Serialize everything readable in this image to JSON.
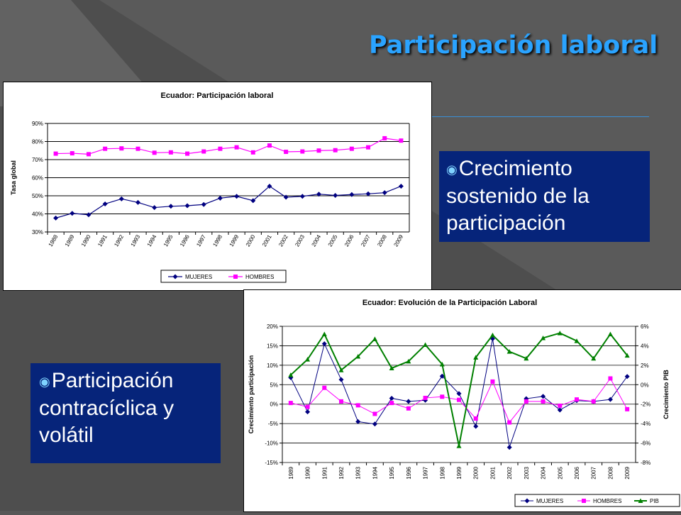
{
  "slide": {
    "title": "Participación laboral",
    "bullet1": "Crecimiento sostenido de la participación",
    "bullet2": "Participación contracíclica y volátil"
  },
  "colors": {
    "mujeres": "#000080",
    "hombres": "#ff00ff",
    "pib": "#008000",
    "title": "#2aa3ff",
    "callout": "#06247a"
  },
  "chart_data": [
    {
      "type": "line",
      "title": "Ecuador: Participación laboral",
      "ylabel": "Tasa global",
      "xlabel": "",
      "ylim": [
        0.3,
        0.9
      ],
      "yticks": [
        "30%",
        "40%",
        "50%",
        "60%",
        "70%",
        "80%",
        "90%"
      ],
      "categories": [
        "1988",
        "1989",
        "1990",
        "1991",
        "1992",
        "1993",
        "1994",
        "1995",
        "1996",
        "1997",
        "1998",
        "1999",
        "2000",
        "2001",
        "2002",
        "2003",
        "2004",
        "2005",
        "2006",
        "2007",
        "2008",
        "2009"
      ],
      "series": [
        {
          "name": "MUJERES",
          "values": [
            0.377,
            0.403,
            0.395,
            0.455,
            0.483,
            0.463,
            0.435,
            0.442,
            0.445,
            0.452,
            0.487,
            0.497,
            0.473,
            0.553,
            0.492,
            0.497,
            0.509,
            0.502,
            0.507,
            0.511,
            0.517,
            0.553
          ]
        },
        {
          "name": "HOMBRES",
          "values": [
            0.733,
            0.735,
            0.73,
            0.76,
            0.762,
            0.76,
            0.738,
            0.74,
            0.733,
            0.745,
            0.76,
            0.768,
            0.74,
            0.778,
            0.743,
            0.745,
            0.75,
            0.752,
            0.76,
            0.768,
            0.818,
            0.805
          ]
        }
      ],
      "grid": true,
      "legend": "bottom"
    },
    {
      "type": "line",
      "title": "Ecuador: Evolución de la Participación Laboral",
      "ylabel": "Crecimiento participación",
      "ylabel2": "Crecimiento PIB",
      "ylim": [
        -0.15,
        0.2
      ],
      "ylim2": [
        -0.08,
        0.06
      ],
      "yticks": [
        "-15%",
        "-10%",
        "-5%",
        "0%",
        "5%",
        "10%",
        "15%",
        "20%"
      ],
      "yticks2": [
        "-8%",
        "-6%",
        "-4%",
        "-2%",
        "0%",
        "2%",
        "4%",
        "6%"
      ],
      "categories": [
        "1989",
        "1990",
        "1991",
        "1992",
        "1993",
        "1994",
        "1995",
        "1996",
        "1997",
        "1998",
        "1999",
        "2000",
        "2001",
        "2002",
        "2003",
        "2004",
        "2005",
        "2006",
        "2007",
        "2008",
        "2009"
      ],
      "series": [
        {
          "name": "MUJERES",
          "axis": "left",
          "values": [
            0.068,
            -0.02,
            0.155,
            0.063,
            -0.045,
            -0.051,
            0.015,
            0.007,
            0.01,
            0.072,
            0.027,
            -0.057,
            0.168,
            -0.111,
            0.014,
            0.02,
            -0.015,
            0.009,
            0.007,
            0.012,
            0.071
          ]
        },
        {
          "name": "HOMBRES",
          "axis": "left",
          "values": [
            0.003,
            -0.007,
            0.042,
            0.007,
            -0.003,
            -0.025,
            0.003,
            -0.011,
            0.016,
            0.019,
            0.011,
            -0.037,
            0.058,
            -0.047,
            0.007,
            0.007,
            -0.004,
            0.012,
            0.007,
            0.066,
            -0.013
          ]
        },
        {
          "name": "PIB",
          "axis": "right",
          "values": [
            0.01,
            0.026,
            0.052,
            0.015,
            0.029,
            0.047,
            0.017,
            0.024,
            0.041,
            0.021,
            -0.063,
            0.028,
            0.051,
            0.034,
            0.027,
            0.048,
            0.053,
            0.045,
            0.027,
            0.052,
            0.03
          ]
        }
      ],
      "grid": true,
      "legend": "bottom"
    }
  ]
}
